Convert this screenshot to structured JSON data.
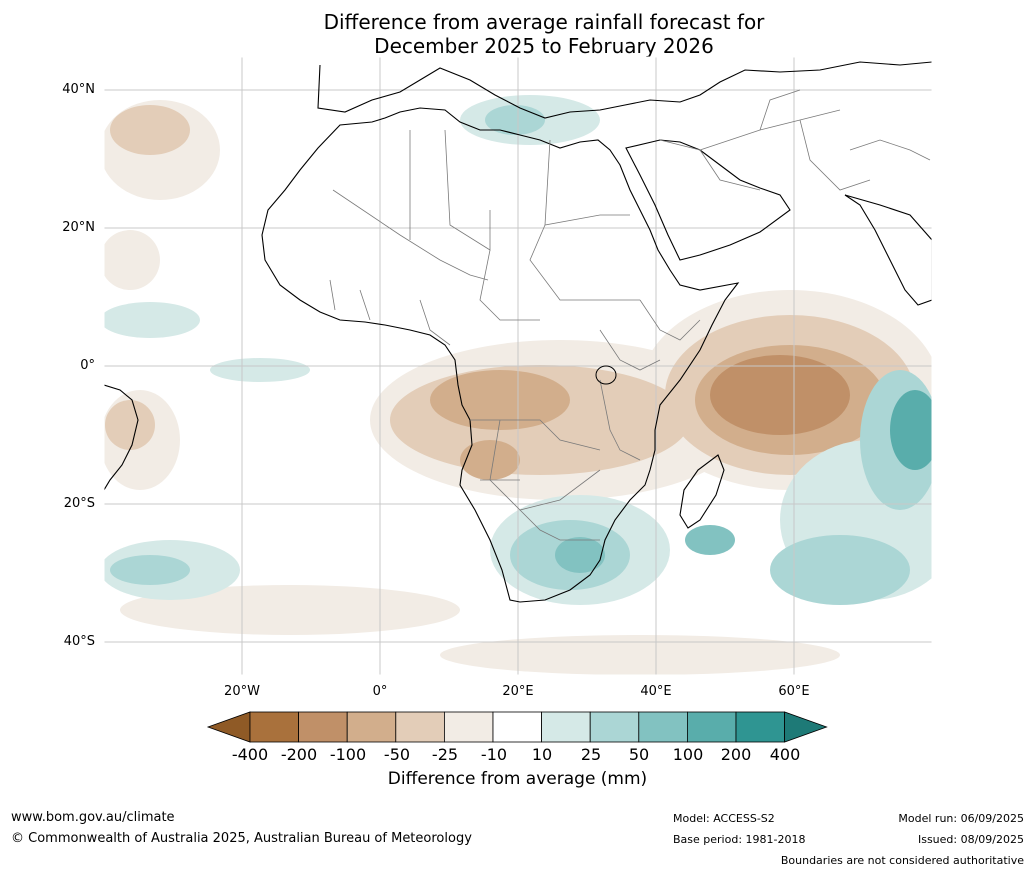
{
  "title": {
    "line1": "Difference from average rainfall forecast for",
    "line2": "December 2025 to February 2026"
  },
  "map": {
    "lat_labels": [
      "40°N",
      "20°N",
      "0°",
      "20°S",
      "40°S"
    ],
    "lon_labels": [
      "20°W",
      "0°",
      "20°E",
      "40°E",
      "60°E"
    ],
    "extent": {
      "lon": [
        -40,
        80
      ],
      "lat": [
        -45,
        45
      ]
    },
    "gridlines": true
  },
  "colorbar": {
    "title": "Difference from average (mm)",
    "tick_labels": [
      "-400",
      "-200",
      "-100",
      "-50",
      "-25",
      "-10",
      "10",
      "25",
      "50",
      "100",
      "200",
      "400"
    ],
    "colors": [
      "#8f5a26",
      "#a9713c",
      "#c09068",
      "#d2ae8c",
      "#e3cdb8",
      "#f2ece5",
      "#ffffff",
      "#d5e9e7",
      "#abd6d5",
      "#82c2c1",
      "#59adab",
      "#2f9592",
      "#1e7a77"
    ]
  },
  "footer": {
    "website": "www.bom.gov.au/climate",
    "copyright": "© Commonwealth of Australia 2025, Australian Bureau of Meteorology",
    "model": "Model: ACCESS-S2",
    "base_period": "Base period: 1981-2018",
    "model_run": "Model run: 06/09/2025",
    "issued": "Issued: 08/09/2025",
    "boundaries_note": "Boundaries are not considered authoritative"
  }
}
